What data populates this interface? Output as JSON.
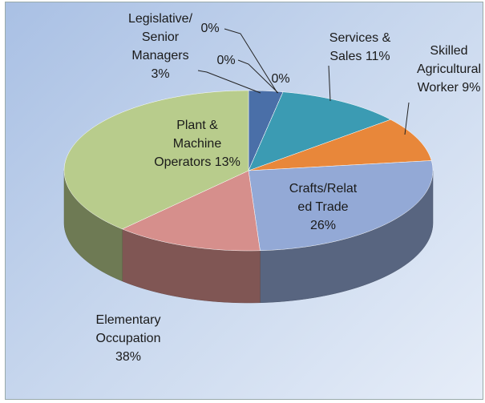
{
  "chart_data": {
    "type": "pie",
    "categories": [
      "Legislative/ Senior Managers",
      null,
      null,
      null,
      "Services & Sales",
      "Skilled Agricultural Worker",
      "Crafts/Related Trade",
      "Plant & Machine Operators",
      "Elementary Occupation"
    ],
    "values": [
      3,
      0,
      0,
      0,
      11,
      9,
      26,
      13,
      38
    ],
    "value_labels": [
      "3%",
      "0%",
      "0%",
      "0%",
      "11%",
      "9%",
      "26%",
      "13%",
      "38%"
    ],
    "colors": [
      "#4a6fa8",
      "#8a5a9e",
      "#7a9a3e",
      "#b04a48",
      "#3b9bb3",
      "#e8873a",
      "#93a9d6",
      "#d68f8c",
      "#b8cc8c"
    ]
  }
}
